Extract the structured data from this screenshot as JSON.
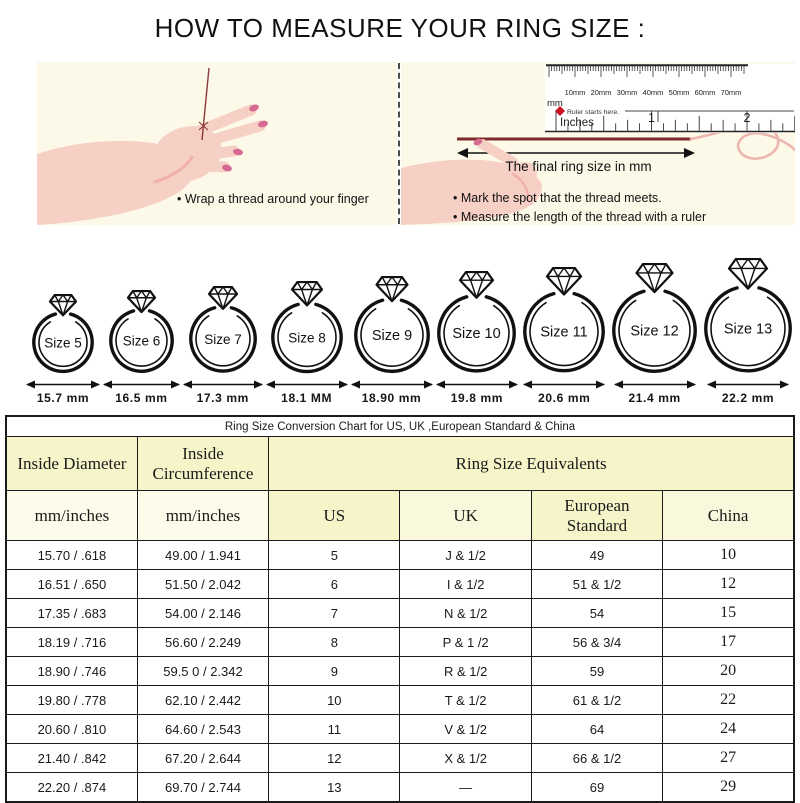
{
  "title": "HOW TO MEASURE YOUR RING SIZE :",
  "colors": {
    "panel_bg": "#FDF9E8",
    "header_yellow": "#F6F4C9",
    "skin": "#F6CFC5",
    "skin_shade": "#F0B2A8",
    "nail": "#D66A92",
    "thread_dark": "#7E2B2B",
    "thread_light": "#EDB6B0",
    "marker_red": "#CC1122"
  },
  "steps": {
    "left_caption": "• Wrap a thread around your finger",
    "right_captions": [
      "• Mark the spot that the thread meets.",
      "• Measure the length of the thread with a ruler"
    ],
    "ruler": {
      "mm_labels": [
        "10mm",
        "20mm",
        "30mm",
        "40mm",
        "50mm",
        "60mm",
        "70mm"
      ],
      "mm_unit": "mm",
      "starts_here": "Ruler starts here.",
      "inches_label": "Inches",
      "inch_numbers": [
        "1",
        "2"
      ],
      "arrow_label": "The final ring size in mm"
    }
  },
  "rings": [
    {
      "size_label": "Size 5",
      "diameter_label": "15.7 mm",
      "d": 62,
      "dw": 26
    },
    {
      "size_label": "Size 6",
      "diameter_label": "16.5 mm",
      "d": 65,
      "dw": 27
    },
    {
      "size_label": "Size 7",
      "diameter_label": "17.3 mm",
      "d": 68,
      "dw": 28
    },
    {
      "size_label": "Size 8",
      "diameter_label": "18.1 MM",
      "d": 72,
      "dw": 30
    },
    {
      "size_label": "Size 9",
      "diameter_label": "18.90 mm",
      "d": 76,
      "dw": 31
    },
    {
      "size_label": "Size 10",
      "diameter_label": "19.8 mm",
      "d": 79,
      "dw": 33
    },
    {
      "size_label": "Size 11",
      "diameter_label": "20.6 mm",
      "d": 82,
      "dw": 34
    },
    {
      "size_label": "Size 12",
      "diameter_label": "21.4 mm",
      "d": 85,
      "dw": 36
    },
    {
      "size_label": "Size 13",
      "diameter_label": "22.2 mm",
      "d": 88,
      "dw": 38
    }
  ],
  "table": {
    "title": "Ring Size Conversion Chart for US, UK ,European Standard & China",
    "group_headers": [
      "Inside Diameter",
      "Inside Circumference",
      "Ring Size Equivalents"
    ],
    "sub_headers": [
      "mm/inches",
      "mm/inches",
      "US",
      "UK",
      "European Standard",
      "China"
    ],
    "rows": [
      [
        "15.70 / .618",
        "49.00 / 1.941",
        "5",
        "J & 1/2",
        "49",
        "10"
      ],
      [
        "16.51 / .650",
        "51.50 / 2.042",
        "6",
        "I & 1/2",
        "51 & 1/2",
        "12"
      ],
      [
        "17.35 / .683",
        "54.00 / 2.146",
        "7",
        "N & 1/2",
        "54",
        "15"
      ],
      [
        "18.19 / .716",
        "56.60 / 2.249",
        "8",
        "P & 1 /2",
        "56 & 3/4",
        "17"
      ],
      [
        "18.90 / .746",
        "59.5 0 / 2.342",
        "9",
        "R & 1/2",
        "59",
        "20"
      ],
      [
        "19.80 / .778",
        "62.10 / 2.442",
        "10",
        "T & 1/2",
        "61 & 1/2",
        "22"
      ],
      [
        "20.60 / .810",
        "64.60 / 2.543",
        "11",
        "V & 1/2",
        "64",
        "24"
      ],
      [
        "21.40 / .842",
        "67.20 / 2.644",
        "12",
        "X & 1/2",
        "66 & 1/2",
        "27"
      ],
      [
        "22.20 / .874",
        "69.70 / 2.744",
        "13",
        "—",
        "69",
        "29"
      ]
    ]
  }
}
